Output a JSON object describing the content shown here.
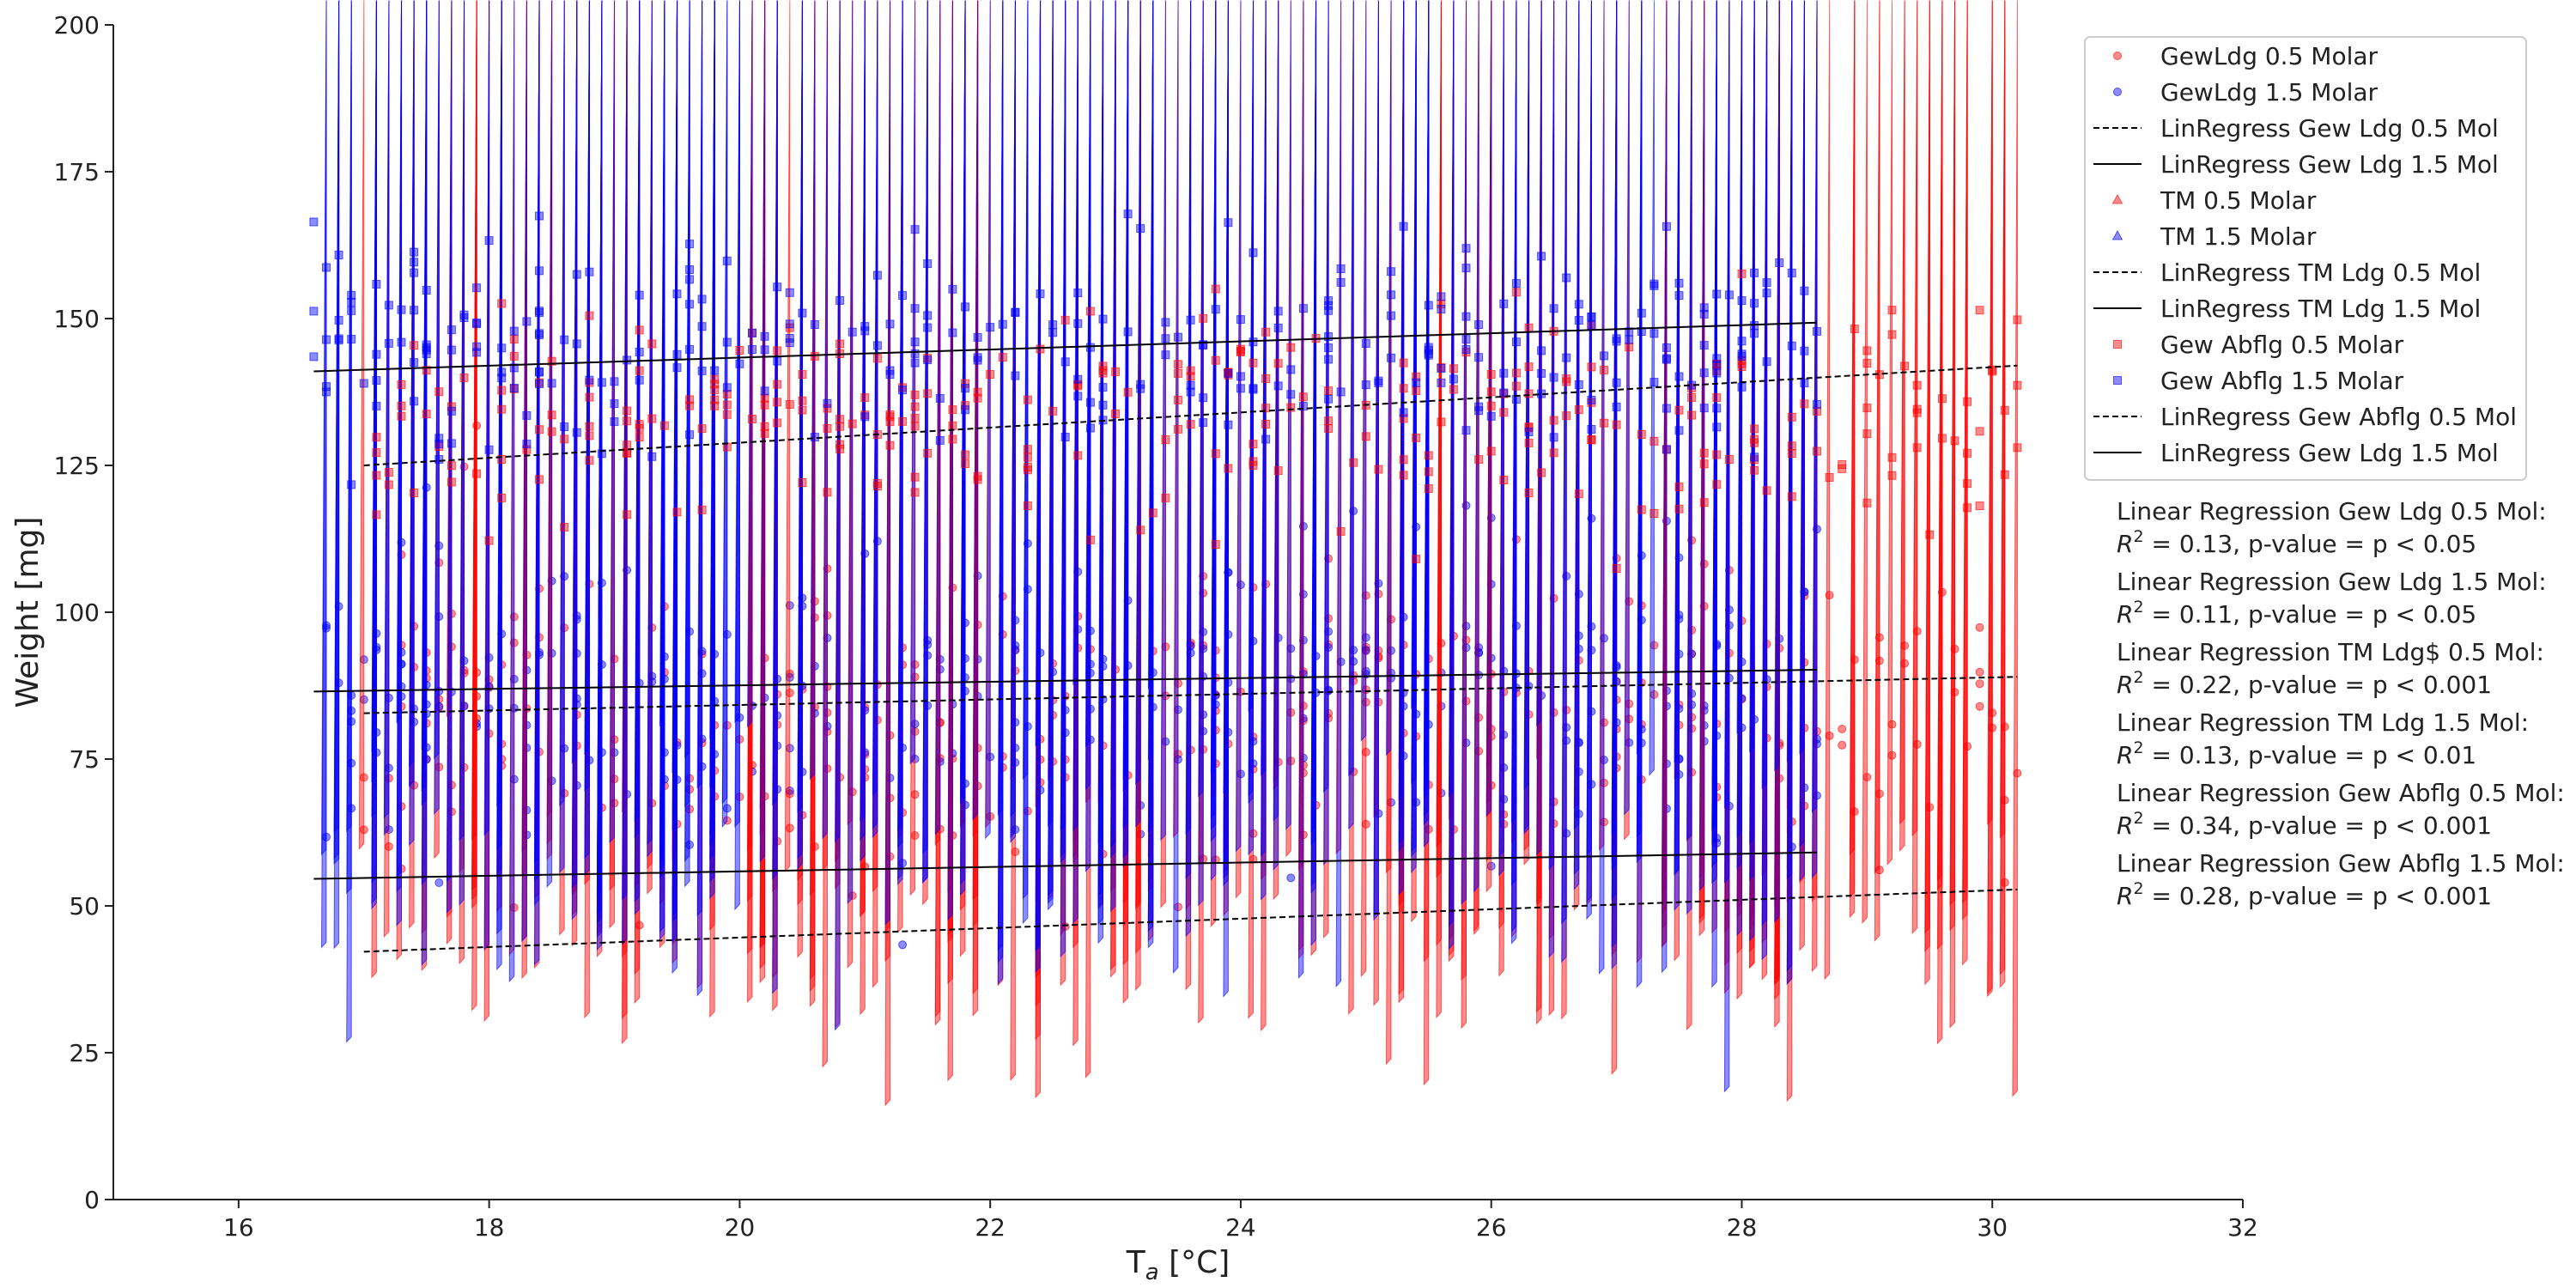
{
  "chart_data": {
    "type": "scatter",
    "xlabel_main": "T",
    "xlabel_sub": "a",
    "xlabel_unit": " [°C]",
    "ylabel": "Weight [mg]",
    "xlim": [
      15,
      32
    ],
    "ylim": [
      0,
      200
    ],
    "xticks": [
      16,
      18,
      20,
      22,
      24,
      26,
      28,
      30,
      32
    ],
    "yticks": [
      0,
      25,
      50,
      75,
      100,
      125,
      150,
      175,
      200
    ],
    "grid": false,
    "legend_position": "top-right",
    "colors": {
      "red": "#ff0000",
      "blue": "#0000ff",
      "line": "#000000"
    },
    "scatter_groups": [
      {
        "name": "GewLdg 0.5 Molar",
        "marker": "circle",
        "color": "red",
        "x_range": [
          17.0,
          30.2
        ],
        "y_center": 82,
        "y_spread": 14,
        "count": 330,
        "seed": 11
      },
      {
        "name": "GewLdg 1.5 Molar",
        "marker": "circle",
        "color": "blue",
        "x_range": [
          16.6,
          28.6
        ],
        "y_center": 87,
        "y_spread": 12,
        "count": 330,
        "seed": 23
      },
      {
        "name": "TM 0.5 Molar",
        "marker": "triangle",
        "color": "red",
        "x_range": [
          17.0,
          30.2
        ],
        "y_center": 46,
        "y_spread": 12,
        "count": 330,
        "seed": 37
      },
      {
        "name": "TM 1.5 Molar",
        "marker": "triangle",
        "color": "blue",
        "x_range": [
          16.6,
          28.6
        ],
        "y_center": 57,
        "y_spread": 12,
        "count": 330,
        "seed": 41
      },
      {
        "name": "Gew Abflg 0.5 Molar",
        "marker": "square",
        "color": "red",
        "x_range": [
          17.0,
          30.2
        ],
        "y_center": 133,
        "y_spread": 9,
        "count": 330,
        "seed": 53
      },
      {
        "name": "Gew Abflg 1.5 Molar",
        "marker": "square",
        "color": "blue",
        "x_range": [
          16.6,
          28.6
        ],
        "y_center": 145,
        "y_spread": 8,
        "count": 330,
        "seed": 67
      }
    ],
    "regression_lines": [
      {
        "name": "LinRegress Gew Ldg 0.5 Mol",
        "style": "dashed",
        "x": [
          17.0,
          30.2
        ],
        "y": [
          82.8,
          89.0
        ]
      },
      {
        "name": "LinRegress Gew Ldg 1.5 Mol",
        "style": "solid",
        "x": [
          16.6,
          28.6
        ],
        "y": [
          86.5,
          90.2
        ]
      },
      {
        "name": "LinRegress TM Ldg 0.5 Mol",
        "style": "dashed",
        "x": [
          17.0,
          30.2
        ],
        "y": [
          42.2,
          52.8
        ]
      },
      {
        "name": "LinRegress TM Ldg 1.5 Mol",
        "style": "solid",
        "x": [
          16.6,
          28.6
        ],
        "y": [
          54.6,
          59.1
        ]
      },
      {
        "name": "LinRegress Gew Abflg 0.5 Mol",
        "style": "dashed",
        "x": [
          17.0,
          30.2
        ],
        "y": [
          125.0,
          142.0
        ]
      },
      {
        "name": "LinRegress Gew Ldg 1.5 Mol",
        "style": "solid",
        "x": [
          16.6,
          28.6
        ],
        "y": [
          141.0,
          149.3
        ]
      }
    ],
    "legend": [
      {
        "label": "GewLdg 0.5 Molar",
        "kind": "marker",
        "marker": "circle",
        "color": "red"
      },
      {
        "label": "GewLdg 1.5 Molar",
        "kind": "marker",
        "marker": "circle",
        "color": "blue"
      },
      {
        "label": "LinRegress Gew Ldg 0.5 Mol",
        "kind": "line",
        "style": "dashed"
      },
      {
        "label": "LinRegress Gew Ldg 1.5 Mol",
        "kind": "line",
        "style": "solid"
      },
      {
        "label": "TM 0.5 Molar",
        "kind": "marker",
        "marker": "triangle",
        "color": "red"
      },
      {
        "label": "TM 1.5 Molar",
        "kind": "marker",
        "marker": "triangle",
        "color": "blue"
      },
      {
        "label": "LinRegress TM Ldg 0.5 Mol",
        "kind": "line",
        "style": "dashed"
      },
      {
        "label": "LinRegress TM Ldg 1.5 Mol",
        "kind": "line",
        "style": "solid"
      },
      {
        "label": "Gew Abflg 0.5 Molar",
        "kind": "marker",
        "marker": "square",
        "color": "red"
      },
      {
        "label": "Gew Abflg 1.5 Molar",
        "kind": "marker",
        "marker": "square",
        "color": "blue"
      },
      {
        "label": "LinRegress Gew Abflg 0.5 Mol",
        "kind": "line",
        "style": "dashed"
      },
      {
        "label": "LinRegress Gew Ldg 1.5 Mol",
        "kind": "line",
        "style": "solid"
      }
    ],
    "annotations": [
      {
        "title": "Linear Regression Gew Ldg 0.5 Mol:",
        "r2": " = 0.13, p-value = p < 0.05"
      },
      {
        "title": "Linear Regression Gew Ldg 1.5 Mol:",
        "r2": " = 0.11, p-value = p < 0.05"
      },
      {
        "title": "Linear Regression TM Ldg$ 0.5 Mol:",
        "r2": " = 0.22, p-value = p < 0.001"
      },
      {
        "title": "Linear Regression TM Ldg 1.5 Mol:",
        "r2": " = 0.13, p-value = p < 0.01"
      },
      {
        "title": "Linear Regression Gew Abflg 0.5 Mol:",
        "r2": " = 0.34, p-value = p < 0.001"
      },
      {
        "title": "Linear Regression Gew Abflg 1.5 Mol:",
        "r2": " = 0.28, p-value = p < 0.001"
      }
    ],
    "r2_symbol": "R",
    "r2_exponent": "2"
  }
}
